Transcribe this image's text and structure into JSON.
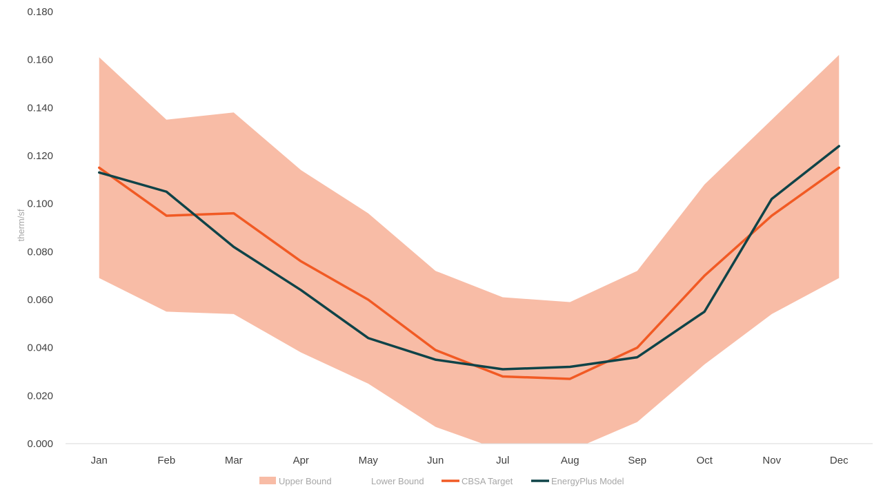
{
  "chart_data": {
    "type": "line",
    "title": "",
    "xlabel": "",
    "ylabel": "therm/sf",
    "categories": [
      "Jan",
      "Feb",
      "Mar",
      "Apr",
      "May",
      "Jun",
      "Jul",
      "Aug",
      "Sep",
      "Oct",
      "Nov",
      "Dec"
    ],
    "ylim": [
      0,
      0.18
    ],
    "yticks": [
      "0.000",
      "0.020",
      "0.040",
      "0.060",
      "0.080",
      "0.100",
      "0.120",
      "0.140",
      "0.160",
      "0.180"
    ],
    "grid": false,
    "legend_position": "bottom",
    "band": {
      "upper_name": "Upper Bound",
      "lower_name": "Lower Bound",
      "upper": [
        0.161,
        0.135,
        0.138,
        0.114,
        0.096,
        0.072,
        0.061,
        0.059,
        0.072,
        0.108,
        0.135,
        0.162
      ],
      "lower": [
        0.069,
        0.055,
        0.054,
        0.038,
        0.025,
        0.007,
        -0.003,
        -0.003,
        0.009,
        0.033,
        0.054,
        0.069
      ],
      "color": "#f8bca6"
    },
    "series": [
      {
        "name": "CBSA Target",
        "color": "#f15a24",
        "values": [
          0.115,
          0.095,
          0.096,
          0.076,
          0.06,
          0.039,
          0.028,
          0.027,
          0.04,
          0.07,
          0.095,
          0.115
        ]
      },
      {
        "name": "EnergyPlus Model",
        "color": "#0f4348",
        "values": [
          0.113,
          0.105,
          0.082,
          0.064,
          0.044,
          0.035,
          0.031,
          0.032,
          0.036,
          0.055,
          0.102,
          0.124
        ]
      }
    ]
  }
}
